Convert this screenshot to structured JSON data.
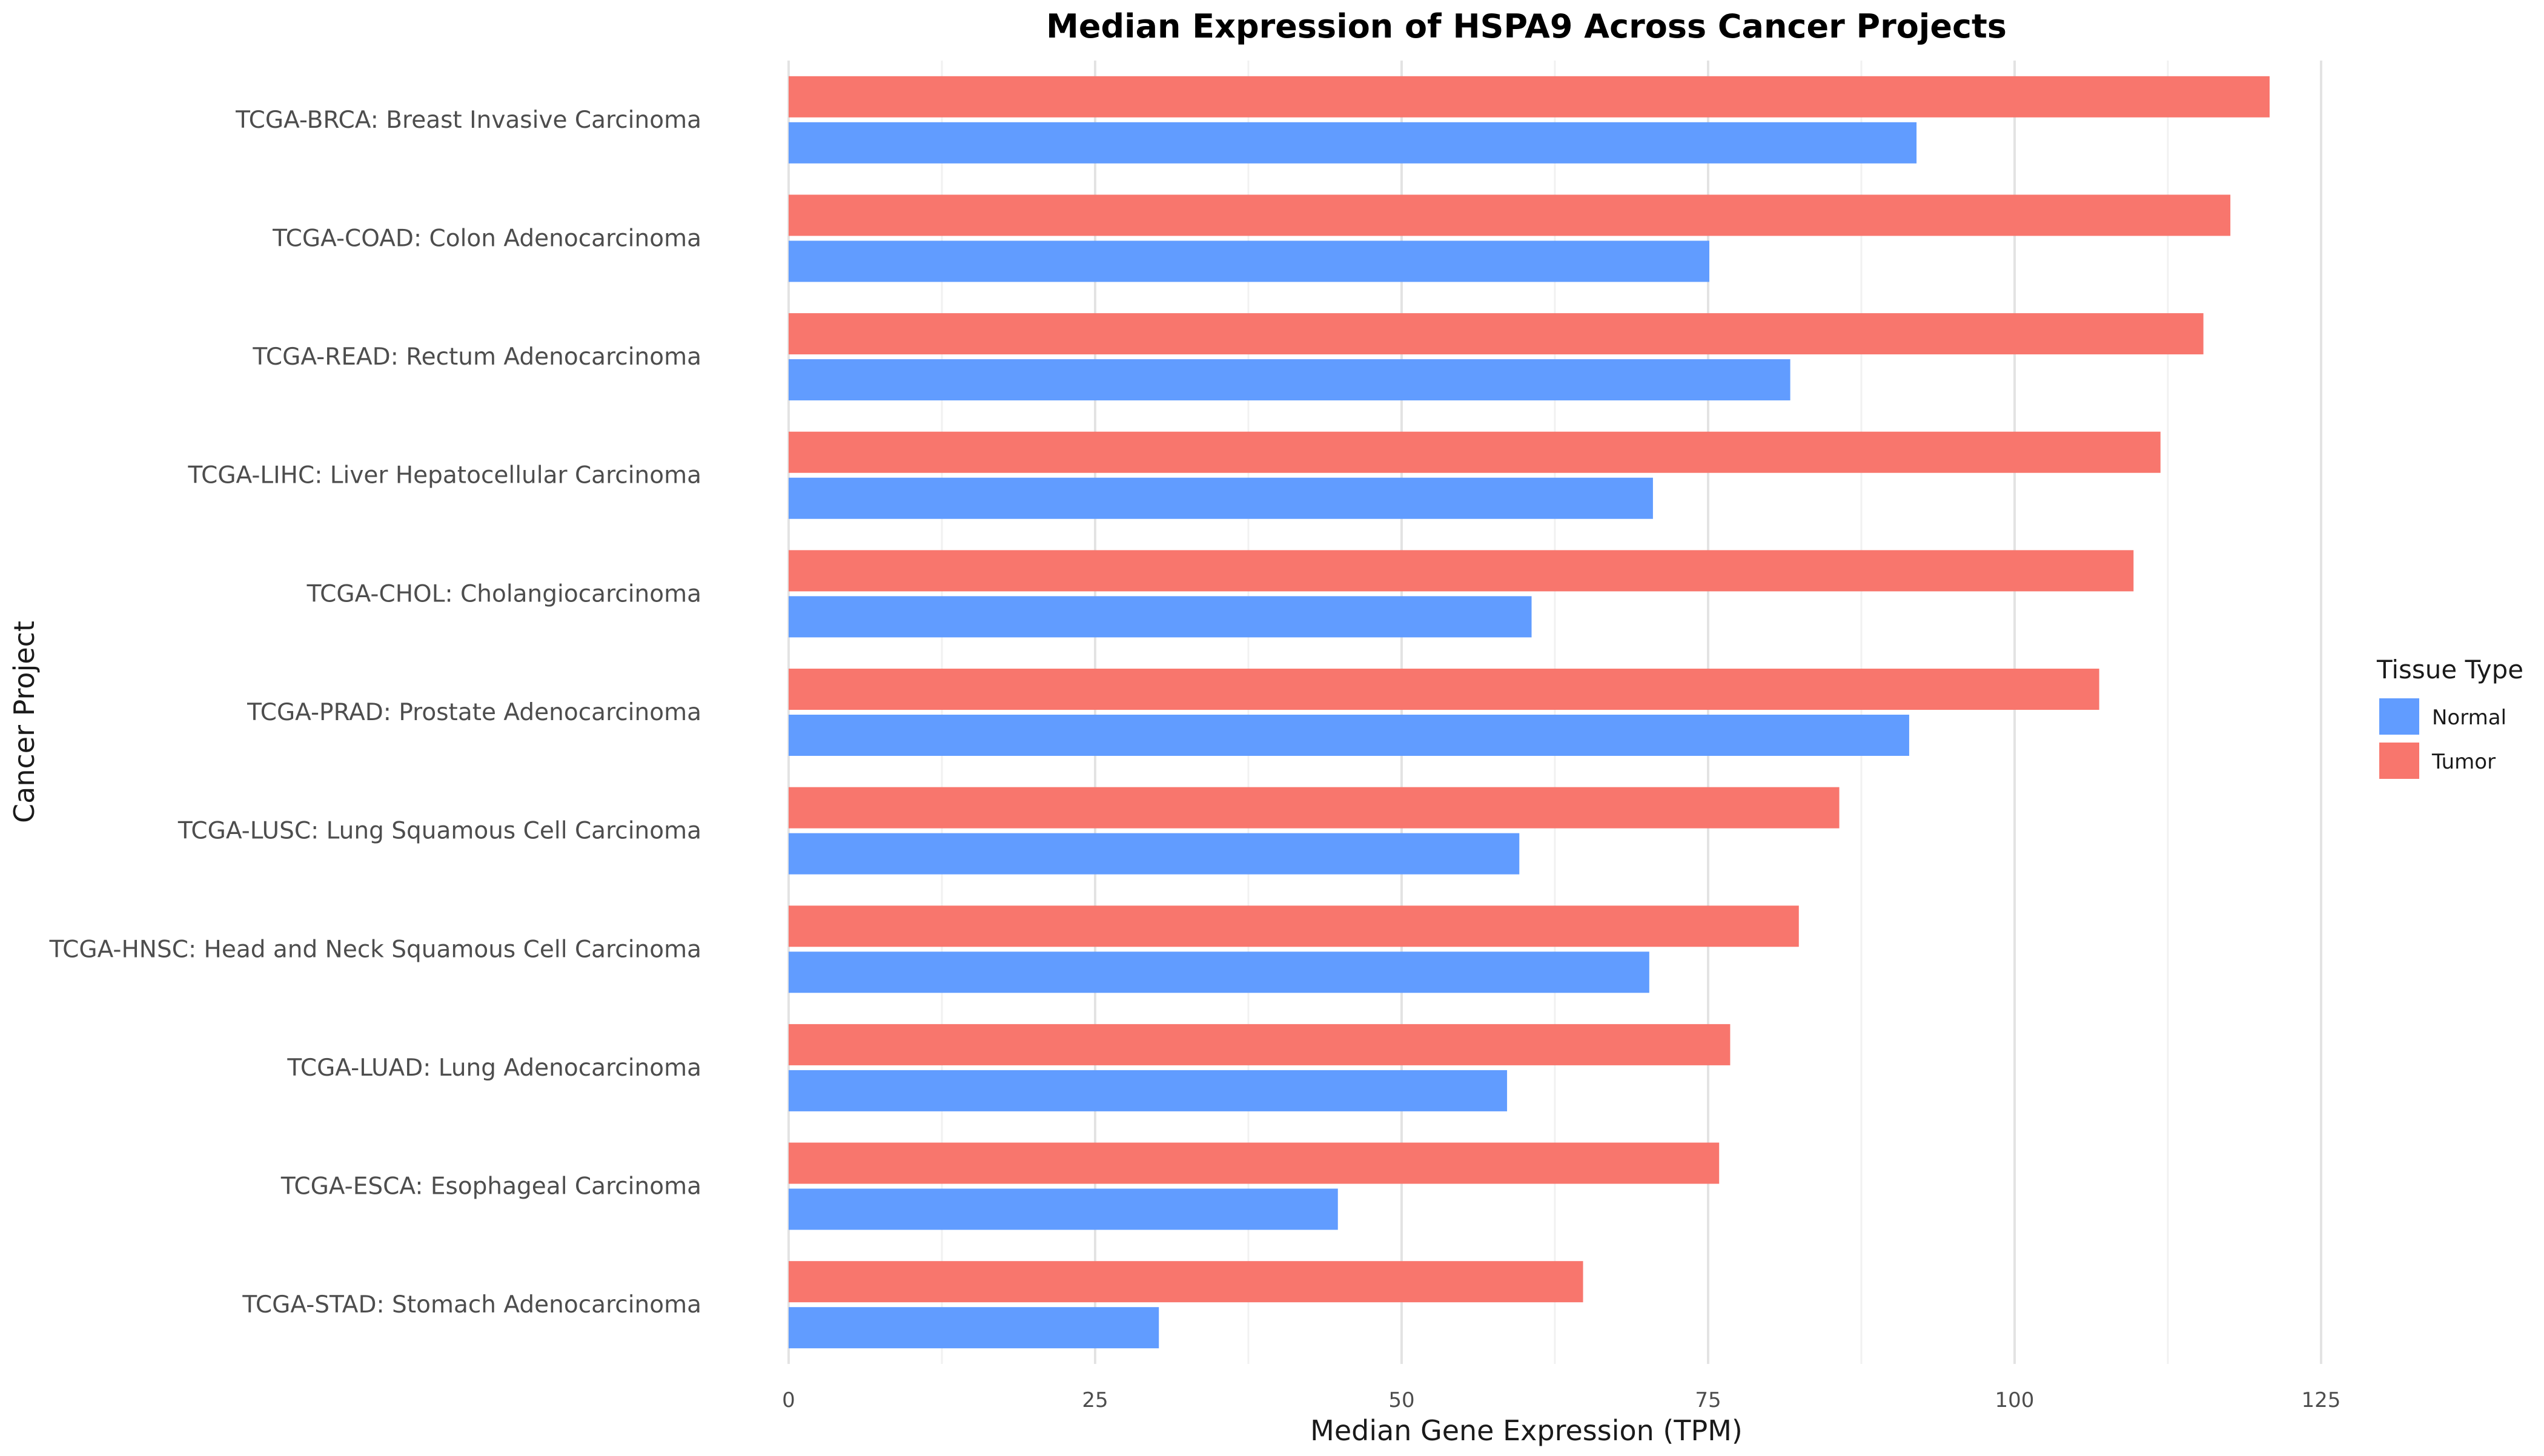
{
  "chart_data": {
    "type": "bar",
    "orientation": "horizontal",
    "title": "Median Expression of HSPA9 Across Cancer Projects",
    "xlabel": "Median Gene Expression (TPM)",
    "ylabel": "Cancer Project",
    "xlim": [
      0,
      125
    ],
    "xticks": [
      0,
      25,
      50,
      75,
      100,
      125
    ],
    "grid": true,
    "legend_position": "right",
    "legend": {
      "title": "Tissue Type",
      "items": [
        {
          "name": "Normal",
          "color": "#619CFF"
        },
        {
          "name": "Tumor",
          "color": "#F8766D"
        }
      ]
    },
    "categories": [
      "TCGA-BRCA: Breast Invasive Carcinoma",
      "TCGA-COAD: Colon Adenocarcinoma",
      "TCGA-READ: Rectum Adenocarcinoma",
      "TCGA-LIHC: Liver Hepatocellular Carcinoma",
      "TCGA-CHOL: Cholangiocarcinoma",
      "TCGA-PRAD: Prostate Adenocarcinoma",
      "TCGA-LUSC: Lung Squamous Cell Carcinoma",
      "TCGA-HNSC: Head and Neck Squamous Cell Carcinoma",
      "TCGA-LUAD: Lung Adenocarcinoma",
      "TCGA-ESCA: Esophageal Carcinoma",
      "TCGA-STAD: Stomach Adenocarcinoma"
    ],
    "series": [
      {
        "name": "Tumor",
        "color": "#F8766D",
        "values": [
          120.8,
          117.6,
          115.4,
          111.9,
          109.7,
          106.9,
          85.7,
          82.4,
          76.8,
          75.9,
          64.8
        ]
      },
      {
        "name": "Normal",
        "color": "#619CFF",
        "values": [
          92.0,
          75.1,
          81.7,
          70.5,
          60.6,
          91.4,
          59.6,
          70.2,
          58.6,
          44.8,
          30.2
        ]
      }
    ]
  }
}
